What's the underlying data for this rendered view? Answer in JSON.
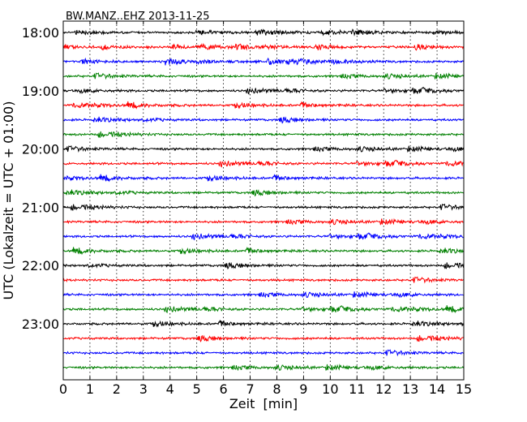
{
  "chart_data": {
    "type": "line",
    "title": "BW.MANZ..EHZ 2013-11-25",
    "xlabel": "Zeit  [min]",
    "ylabel": "UTC (Lokalzeit = UTC + 01:00)",
    "xlim": [
      0,
      15
    ],
    "x_ticks": [
      "0",
      "1",
      "2",
      "3",
      "4",
      "5",
      "6",
      "7",
      "8",
      "9",
      "10",
      "11",
      "12",
      "13",
      "14",
      "15"
    ],
    "y_ticks": [
      "18:00",
      "19:00",
      "20:00",
      "21:00",
      "22:00",
      "23:00"
    ],
    "grid": "vertical dotted",
    "trace_interval_min": 15,
    "traces_per_hour": 4,
    "trace_start": "18:00",
    "trace_count": 24,
    "series_colors": [
      "#000000",
      "#ff0000",
      "#0000ff",
      "#008000"
    ]
  }
}
